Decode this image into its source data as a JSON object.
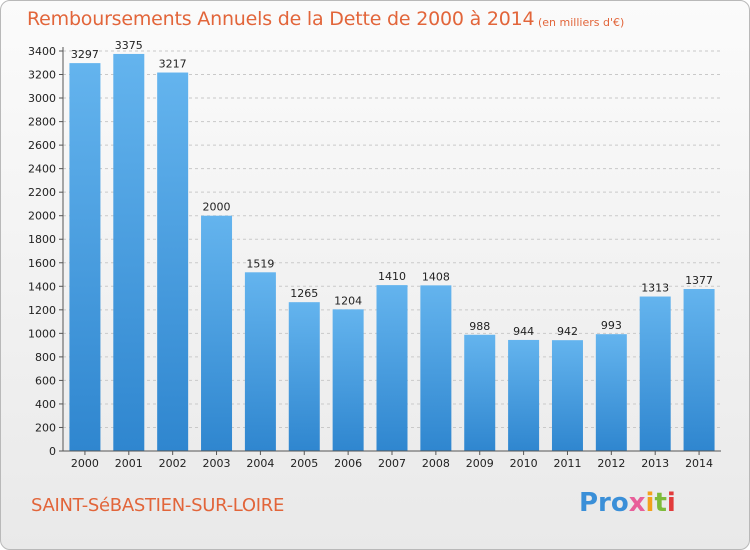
{
  "header": {
    "title": "Remboursements Annuels de la Dette de 2000 à 2014",
    "subtitle": "(en milliers d'€)"
  },
  "footer": {
    "city": "SAINT-SéBASTIEN-SUR-LOIRE",
    "logo": "Proxiti"
  },
  "colors": {
    "title": "#e2653a",
    "bar_top": "#64b4ee",
    "bar_bottom": "#2f86cf"
  },
  "chart_data": {
    "type": "bar",
    "title": "Remboursements Annuels de la Dette de 2000 à 2014",
    "subtitle": "(en milliers d'€)",
    "categories": [
      "2000",
      "2001",
      "2002",
      "2003",
      "2004",
      "2005",
      "2006",
      "2007",
      "2008",
      "2009",
      "2010",
      "2011",
      "2012",
      "2013",
      "2014"
    ],
    "values": [
      3297,
      3375,
      3217,
      2000,
      1519,
      1265,
      1204,
      1410,
      1408,
      988,
      944,
      942,
      993,
      1313,
      1377
    ],
    "ylim": [
      0,
      3400
    ],
    "yticks": [
      0,
      200,
      400,
      600,
      800,
      1000,
      1200,
      1400,
      1600,
      1800,
      2000,
      2200,
      2400,
      2600,
      2800,
      3000,
      3200,
      3400
    ],
    "grid": true,
    "xlabel": "",
    "ylabel": ""
  }
}
